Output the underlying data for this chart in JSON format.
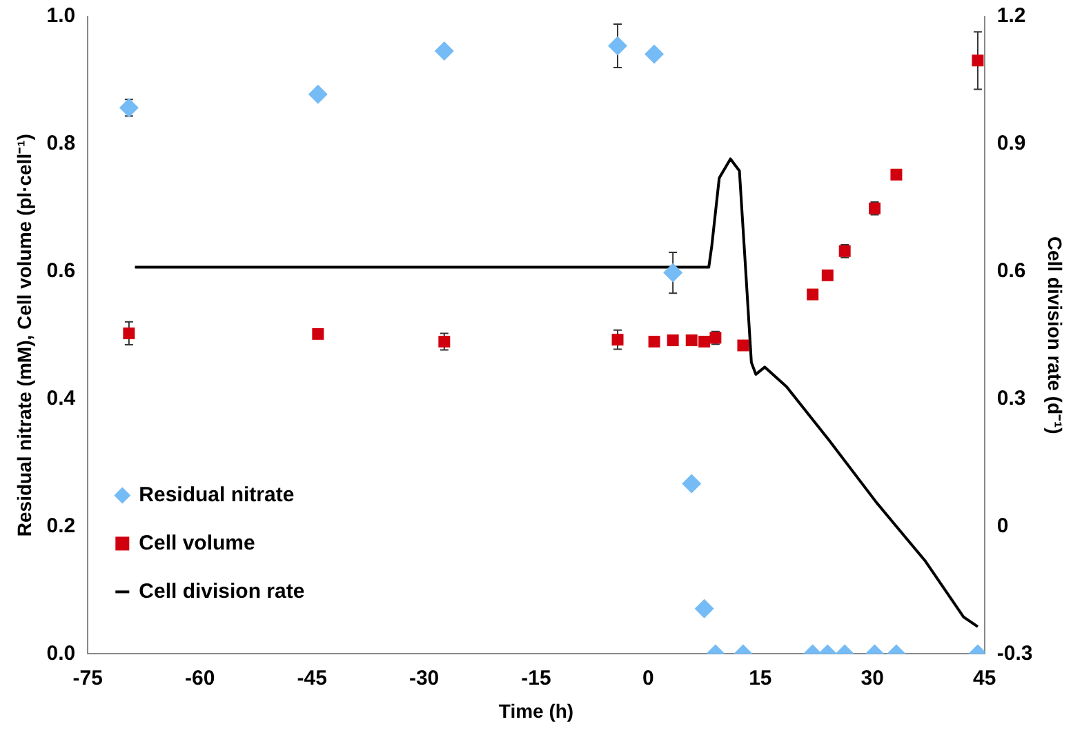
{
  "chart_data": {
    "type": "scatter",
    "xlabel": "Time (h)",
    "ylabel": "Residual nitrate (mM), Cell volume (pl·cell⁻¹)",
    "y2label": "Cell division rate (d⁻¹)",
    "xlim": [
      -75,
      45
    ],
    "xticks": [
      -75,
      -60,
      -45,
      -30,
      -15,
      0,
      15,
      30,
      45
    ],
    "ylim": [
      0,
      1
    ],
    "yticks": [
      {
        "value": 0,
        "label": "0.0"
      },
      {
        "value": 0.2,
        "label": "0.2"
      },
      {
        "value": 0.4,
        "label": "0.4"
      },
      {
        "value": 0.6,
        "label": "0.6"
      },
      {
        "value": 0.8,
        "label": "0.8"
      },
      {
        "value": 1,
        "label": "1.0"
      }
    ],
    "y2lim": [
      -0.3,
      1.2
    ],
    "y2ticks": [
      -0.3,
      0,
      0.3,
      0.6,
      0.9,
      1.2
    ],
    "grid": false,
    "legend": "bottom left",
    "series": [
      {
        "name": "Residual nitrate",
        "marker": "diamond",
        "color": "#75bbf5",
        "x": [
          -69.5,
          -44.2,
          -27.3,
          -4.1,
          0.8,
          3.3,
          5.8,
          7.5,
          9,
          12.7,
          22,
          24,
          26.3,
          30.3,
          33.2,
          44.1
        ],
        "values": [
          0.857,
          0.878,
          0.946,
          0.954,
          0.941,
          0.598,
          0.267,
          0.071,
          0,
          0,
          0,
          0,
          0,
          0,
          0,
          0
        ],
        "errors": [
          0.013,
          null,
          null,
          0.034,
          null,
          0.032,
          null,
          null,
          null,
          null,
          null,
          null,
          null,
          null,
          null,
          null
        ]
      },
      {
        "name": "Cell volume",
        "marker": "square",
        "color": "#d0000f",
        "x": [
          -69.5,
          -44.2,
          -27.3,
          -4.1,
          0.8,
          3.3,
          5.8,
          7.5,
          9,
          12.7,
          22,
          24,
          26.3,
          30.3,
          33.2,
          44.1
        ],
        "values": [
          0.503,
          0.502,
          0.49,
          0.493,
          0.49,
          0.492,
          0.492,
          0.49,
          0.496,
          0.484,
          0.564,
          0.594,
          0.632,
          0.699,
          0.752,
          0.931
        ],
        "errors": [
          0.018,
          null,
          0.013,
          0.015,
          null,
          null,
          null,
          null,
          0.01,
          null,
          null,
          null,
          0.01,
          0.01,
          null,
          0.045
        ]
      },
      {
        "name": "Cell division rate",
        "type": "line",
        "axis": "y2",
        "marker": "none",
        "color": "#000000",
        "x": [
          -68.7,
          8.1,
          8.5,
          9,
          9.5,
          11,
          12.2,
          13,
          13.8,
          14.4,
          15.6,
          18.5,
          24.2,
          30.6,
          37.1,
          42.2,
          44.1
        ],
        "values": [
          0.61,
          0.61,
          0.66,
          0.74,
          0.82,
          0.865,
          0.837,
          0.614,
          0.386,
          0.358,
          0.375,
          0.329,
          0.203,
          0.055,
          -0.082,
          -0.213,
          -0.236
        ]
      }
    ]
  }
}
